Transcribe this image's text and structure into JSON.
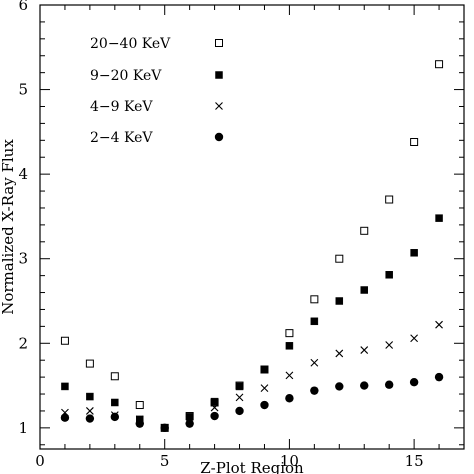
{
  "chart_data": {
    "type": "scatter",
    "title": "",
    "xlabel": "Z-Plot Region",
    "ylabel": "Normalized X-Ray Flux",
    "xlim": [
      0,
      17
    ],
    "ylim": [
      0.75,
      6
    ],
    "xticks": [
      0,
      5,
      10,
      15
    ],
    "yticks": [
      1,
      2,
      3,
      4,
      5,
      6
    ],
    "grid": false,
    "legend_position": "top-left",
    "x": [
      1,
      2,
      3,
      4,
      5,
      6,
      7,
      8,
      9,
      10,
      11,
      12,
      13,
      14,
      15,
      16
    ],
    "series": [
      {
        "name": "20−40 KeV",
        "marker": "open-square",
        "values": [
          2.03,
          1.76,
          1.61,
          1.27,
          1.0,
          1.14,
          1.3,
          1.5,
          1.69,
          2.12,
          2.52,
          3.0,
          3.33,
          3.7,
          4.38,
          5.3
        ]
      },
      {
        "name": "9−20 KeV",
        "marker": "filled-square",
        "values": [
          1.49,
          1.37,
          1.3,
          1.1,
          1.0,
          1.13,
          1.31,
          1.49,
          1.69,
          1.97,
          2.26,
          2.5,
          2.63,
          2.81,
          3.07,
          3.48
        ]
      },
      {
        "name": "4−9 KeV",
        "marker": "cross",
        "values": [
          1.18,
          1.2,
          1.15,
          1.1,
          1.0,
          1.1,
          1.24,
          1.36,
          1.47,
          1.62,
          1.77,
          1.88,
          1.92,
          1.98,
          2.06,
          2.22
        ]
      },
      {
        "name": "2−4 KeV",
        "marker": "filled-circle",
        "values": [
          1.12,
          1.11,
          1.13,
          1.05,
          1.0,
          1.05,
          1.14,
          1.2,
          1.27,
          1.35,
          1.44,
          1.49,
          1.5,
          1.51,
          1.54,
          1.6
        ]
      }
    ]
  }
}
